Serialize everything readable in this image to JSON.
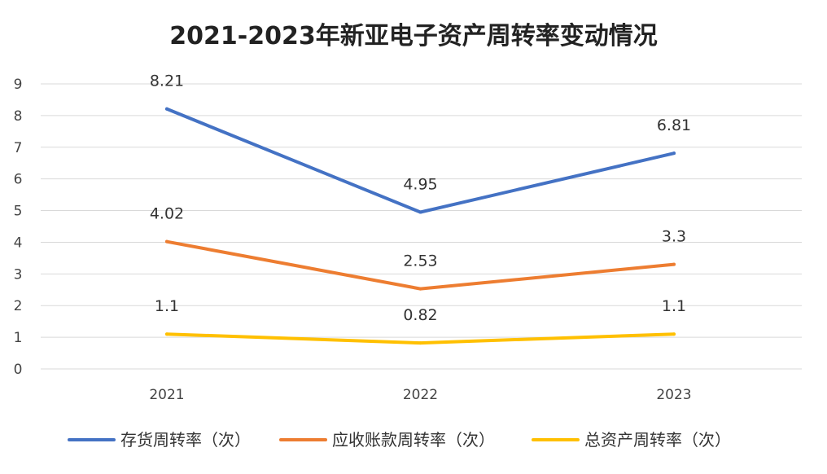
{
  "chart_data": {
    "type": "line",
    "title": "2021-2023年新亚电子资产周转率变动情况",
    "categories": [
      "2021",
      "2022",
      "2023"
    ],
    "ylim": [
      0,
      9
    ],
    "yticks": [
      "0",
      "1",
      "2",
      "3",
      "4",
      "5",
      "6",
      "7",
      "8",
      "9"
    ],
    "grid": true,
    "legend_position": "bottom",
    "series": [
      {
        "name": "存货周转率（次）",
        "color": "#4472C4",
        "values": [
          8.21,
          4.95,
          6.81
        ],
        "labels": [
          "8.21",
          "4.95",
          "6.81"
        ]
      },
      {
        "name": "应收账款周转率（次）",
        "color": "#ED7D31",
        "values": [
          4.02,
          2.53,
          3.3
        ],
        "labels": [
          "4.02",
          "2.53",
          "3.3"
        ]
      },
      {
        "name": "总资产周转率（次）",
        "color": "#FFC000",
        "values": [
          1.1,
          0.82,
          1.1
        ],
        "labels": [
          "1.1",
          "0.82",
          "1.1"
        ]
      }
    ]
  }
}
